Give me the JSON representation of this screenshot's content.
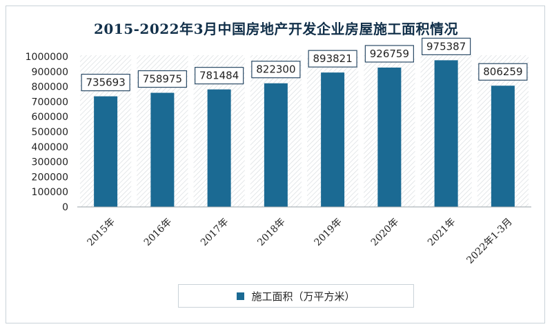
{
  "chart_data": {
    "type": "bar",
    "title": "2015-2022年3月中国房地产开发企业房屋施工面积情况",
    "categories": [
      "2015年",
      "2016年",
      "2017年",
      "2018年",
      "2019年",
      "2020年",
      "2021年",
      "2022年1-3月"
    ],
    "series": [
      {
        "name": "施工面积（万平方米）",
        "values": [
          735693,
          758975,
          781484,
          822300,
          893821,
          926759,
          975387,
          806259
        ]
      }
    ],
    "ylim": [
      0,
      1000000
    ],
    "yticks": [
      0,
      100000,
      200000,
      300000,
      400000,
      500000,
      600000,
      700000,
      800000,
      900000,
      1000000
    ],
    "ytick_labels": [
      "0",
      "100000",
      "200000",
      "300000",
      "400000",
      "500000",
      "600000",
      "700000",
      "800000",
      "900000",
      "1000000"
    ],
    "bar_color": "#1b6a93",
    "legend_position": "bottom",
    "grid": false
  }
}
